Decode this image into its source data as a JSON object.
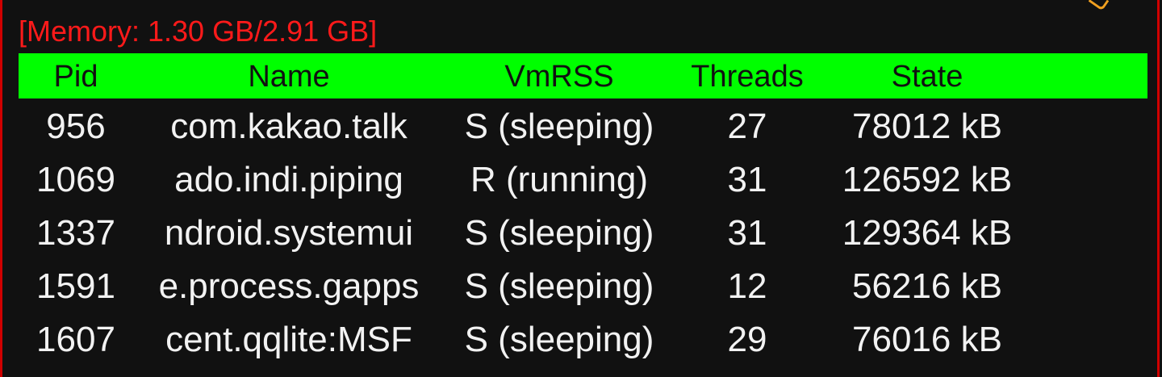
{
  "memory": {
    "label": "[Memory: 1.30 GB/2.91 GB]"
  },
  "table": {
    "columns": [
      "Pid",
      "Name",
      "VmRSS",
      "Threads",
      "State"
    ],
    "rows": [
      {
        "pid": "956",
        "name": "com.kakao.talk",
        "state": "S (sleeping)",
        "threads": "27",
        "vmrss": "78012 kB"
      },
      {
        "pid": "1069",
        "name": "ado.indi.piping",
        "state": "R (running)",
        "threads": "31",
        "vmrss": "126592 kB"
      },
      {
        "pid": "1337",
        "name": "ndroid.systemui",
        "state": "S (sleeping)",
        "threads": "31",
        "vmrss": "129364 kB"
      },
      {
        "pid": "1591",
        "name": "e.process.gapps",
        "state": "S (sleeping)",
        "threads": "12",
        "vmrss": "56216 kB"
      },
      {
        "pid": "1607",
        "name": "cent.qqlite:MSF",
        "state": "S (sleeping)",
        "threads": "29",
        "vmrss": "76016 kB"
      }
    ]
  },
  "colors": {
    "background": "#111111",
    "border": "#d00000",
    "memory_text": "#ff1a1a",
    "header_bg": "#00ff00",
    "row_text": "#f2f2f2"
  }
}
